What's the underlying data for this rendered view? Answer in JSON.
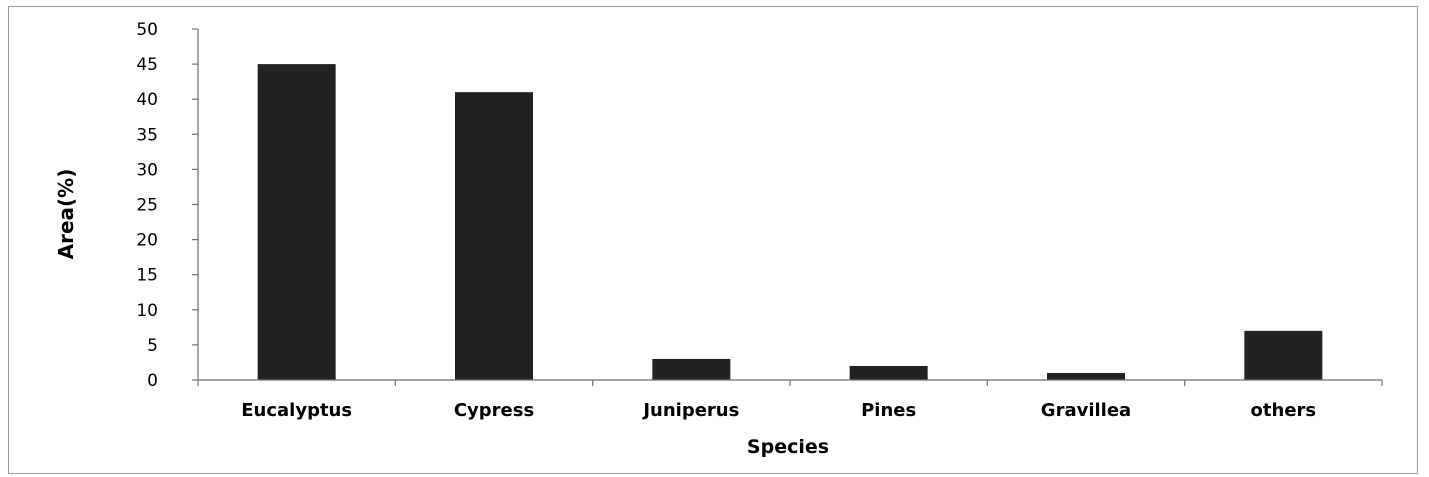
{
  "chart_data": {
    "type": "bar",
    "title": "",
    "categories": [
      "Eucalyptus",
      "Cypress",
      "Juniperus",
      "Pines",
      "Gravillea",
      "others"
    ],
    "values": [
      45,
      41,
      3,
      2,
      1,
      7
    ],
    "xlabel": "Species",
    "ylabel": "Area(%)",
    "ylim": [
      0,
      50
    ],
    "yticks": [
      0,
      5,
      10,
      15,
      20,
      25,
      30,
      35,
      40,
      45,
      50
    ],
    "ytick_labels": [
      "0",
      "5",
      "10",
      "15",
      "20",
      "25",
      "30",
      "35",
      "40",
      "45",
      "50"
    ],
    "grid": false,
    "legend": "none",
    "bar_color": "#222222"
  }
}
